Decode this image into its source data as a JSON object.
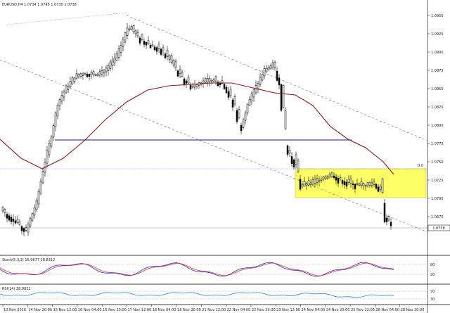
{
  "window": {
    "header_text": "EURUSD,H4  1.0734 1.0745 1.0730 1.0738"
  },
  "price_axis": {
    "labels": [
      "1.0950",
      "1.0925",
      "1.0900",
      "1.0875",
      "1.0850",
      "1.0825",
      "1.0800",
      "1.0775",
      "1.0750",
      "1.0725",
      "1.0700",
      "1.0675"
    ],
    "current_price": "1.0738",
    "level_label": "0.0"
  },
  "stochastic": {
    "label": "Stoch(5,3,3) 15.9677 18.8312",
    "levels": [
      "80",
      "20"
    ]
  },
  "rsi": {
    "label": "RSI(14) 28.8821",
    "levels": [
      "70",
      "30"
    ]
  },
  "time_axis": {
    "labels": [
      "10 Nov 2016",
      "14 Nov 20:00",
      "15 Nov 12:00",
      "16 Nov 04:00",
      "16 Nov 20:00",
      "17 Nov 12:00",
      "18 Nov 04:00",
      "18 Nov 20:00",
      "21 Nov 12:00",
      "22 Nov 04:00",
      "22 Nov 20:00",
      "23 Nov 12:00",
      "24 Nov 04:00",
      "24 Nov 20:00",
      "25 Nov 12:00",
      "28 Nov 04:00",
      "28 Nov 20:00"
    ]
  },
  "colors": {
    "ma_line": "#8b1a1a",
    "highlight_box": "#ffff66",
    "stoch_main": "#1f2cc8",
    "stoch_signal": "#e0303a",
    "rsi_line": "#2a7fd6",
    "trend_lines": "#666666",
    "candles": "#000000"
  }
}
